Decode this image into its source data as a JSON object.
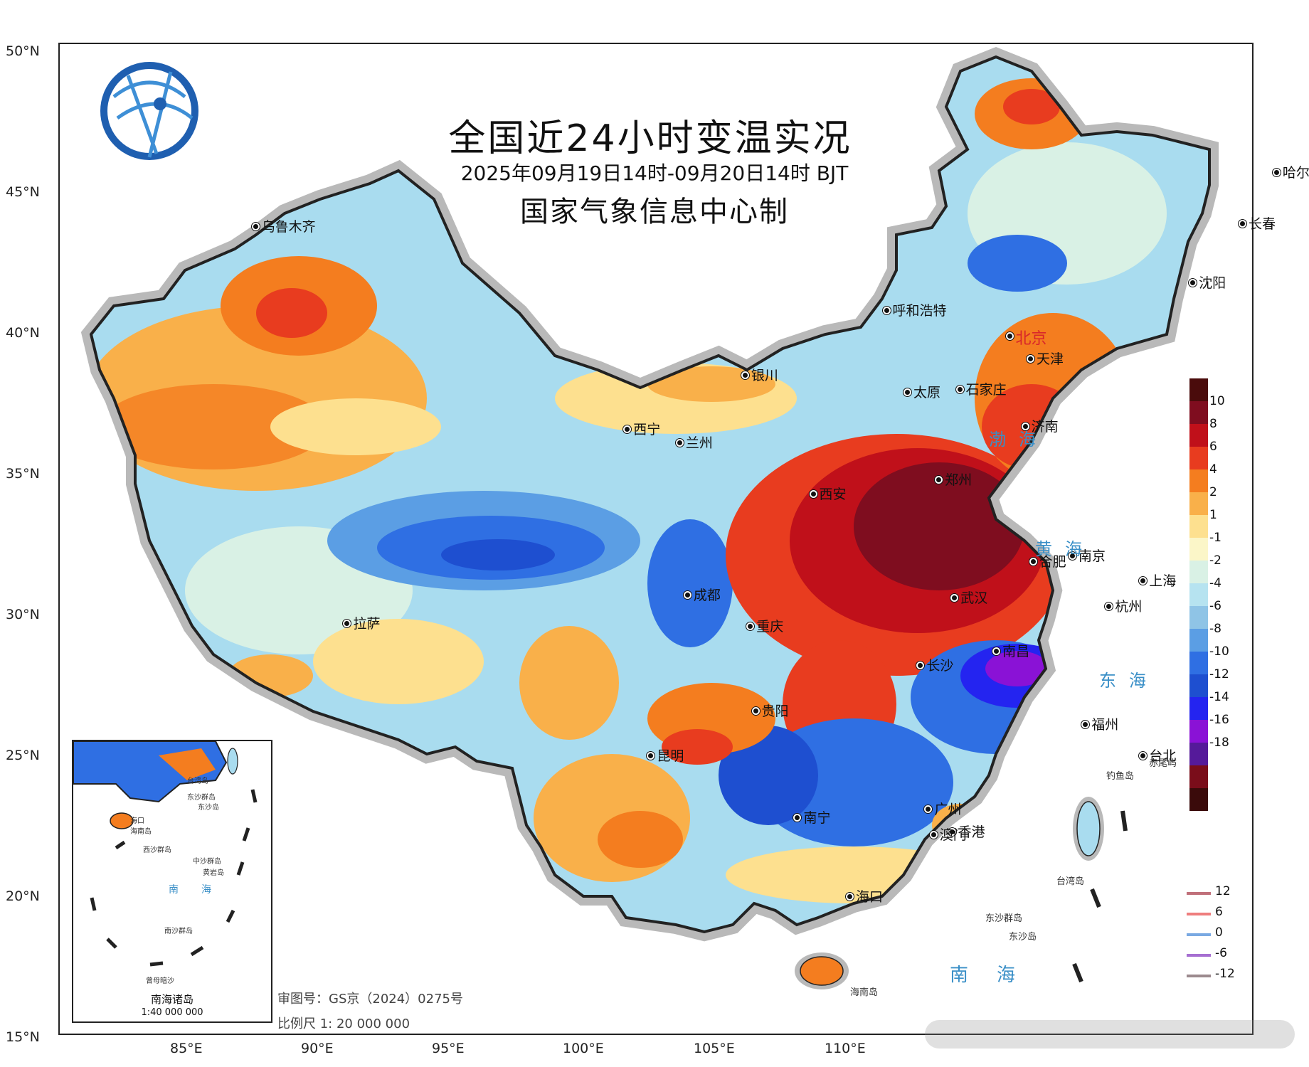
{
  "title": {
    "main": "全国近24小时变温实况",
    "time_range": "2025年09月19日14时-09月20日14时 BJT",
    "organization": "国家气象信息中心制"
  },
  "axes": {
    "latitude_labels": [
      "50°N",
      "45°N",
      "40°N",
      "35°N",
      "30°N",
      "25°N",
      "20°N",
      "15°N"
    ],
    "longitude_labels": [
      "85°E",
      "90°E",
      "95°E",
      "100°E",
      "105°E",
      "110°E"
    ]
  },
  "cities": [
    {
      "name": "乌鲁木齐",
      "lon": 87.6,
      "lat": 43.8
    },
    {
      "name": "哈尔滨",
      "lon": 126.6,
      "lat": 45.7
    },
    {
      "name": "长春",
      "lon": 125.3,
      "lat": 43.9
    },
    {
      "name": "沈阳",
      "lon": 123.4,
      "lat": 41.8
    },
    {
      "name": "呼和浩特",
      "lon": 111.7,
      "lat": 40.8
    },
    {
      "name": "北京",
      "lon": 116.4,
      "lat": 39.9
    },
    {
      "name": "天津",
      "lon": 117.2,
      "lat": 39.1
    },
    {
      "name": "石家庄",
      "lon": 114.5,
      "lat": 38.0
    },
    {
      "name": "银川",
      "lon": 106.3,
      "lat": 38.5
    },
    {
      "name": "太原",
      "lon": 112.5,
      "lat": 37.9
    },
    {
      "name": "济南",
      "lon": 117.0,
      "lat": 36.7
    },
    {
      "name": "西宁",
      "lon": 101.8,
      "lat": 36.6
    },
    {
      "name": "兰州",
      "lon": 103.8,
      "lat": 36.1
    },
    {
      "name": "郑州",
      "lon": 113.7,
      "lat": 34.8
    },
    {
      "name": "西安",
      "lon": 108.9,
      "lat": 34.3
    },
    {
      "name": "合肥",
      "lon": 117.3,
      "lat": 31.9
    },
    {
      "name": "南京",
      "lon": 118.8,
      "lat": 32.1
    },
    {
      "name": "上海",
      "lon": 121.5,
      "lat": 31.2
    },
    {
      "name": "拉萨",
      "lon": 91.1,
      "lat": 29.7
    },
    {
      "name": "成都",
      "lon": 104.1,
      "lat": 30.7
    },
    {
      "name": "武汉",
      "lon": 114.3,
      "lat": 30.6
    },
    {
      "name": "杭州",
      "lon": 120.2,
      "lat": 30.3
    },
    {
      "name": "重庆",
      "lon": 106.5,
      "lat": 29.6
    },
    {
      "name": "南昌",
      "lon": 115.9,
      "lat": 28.7
    },
    {
      "name": "长沙",
      "lon": 113.0,
      "lat": 28.2
    },
    {
      "name": "贵阳",
      "lon": 106.7,
      "lat": 26.6
    },
    {
      "name": "福州",
      "lon": 119.3,
      "lat": 26.1
    },
    {
      "name": "台北",
      "lon": 121.5,
      "lat": 25.0
    },
    {
      "name": "昆明",
      "lon": 102.7,
      "lat": 25.0
    },
    {
      "name": "广州",
      "lon": 113.3,
      "lat": 23.1
    },
    {
      "name": "南宁",
      "lon": 108.3,
      "lat": 22.8
    },
    {
      "name": "香港",
      "lon": 114.2,
      "lat": 22.3
    },
    {
      "name": "澳门",
      "lon": 113.5,
      "lat": 22.2
    },
    {
      "name": "海口",
      "lon": 110.3,
      "lat": 20.0
    }
  ],
  "sea_labels": {
    "bohai": "渤海",
    "huanghai": "黄海",
    "donghai": "东海",
    "nanhai": "南海"
  },
  "island_labels": {
    "diaoyu": "钓鱼岛",
    "chiwei": "赤尾屿",
    "taiwan": "台湾岛",
    "dongsha_qundao": "东沙群岛",
    "dongsha_dao": "东沙岛",
    "hainan": "海南岛"
  },
  "legend": {
    "colors": [
      "#4a0b0b",
      "#7f0d1f",
      "#c0101a",
      "#e83c1f",
      "#f47d1f",
      "#f9b04a",
      "#fde08f",
      "#fbf6c8",
      "#d9f1e5",
      "#b6e3f0",
      "#8fc4e6",
      "#5b9ee4",
      "#2f6fe3",
      "#1e4fd0",
      "#2424f0",
      "#8a12d6",
      "#551a9a",
      "#7a0d1a",
      "#3a0a0a"
    ],
    "ticks": [
      "10",
      "8",
      "6",
      "4",
      "2",
      "1",
      "-1",
      "-2",
      "-4",
      "-6",
      "-8",
      "-10",
      "-12",
      "-14",
      "-16",
      "-18"
    ]
  },
  "contour_legend": [
    {
      "label": "12",
      "color": "#c0707a"
    },
    {
      "label": "6",
      "color": "#ee7e7e"
    },
    {
      "label": "0",
      "color": "#7aa9e2"
    },
    {
      "label": "-6",
      "color": "#a66fd1"
    },
    {
      "label": "-12",
      "color": "#9c8a8e"
    }
  ],
  "inset": {
    "title": "南海诸岛",
    "scale": "1:40 000 000",
    "labels": [
      "台湾岛",
      "东沙群岛",
      "东沙岛",
      "海口",
      "海南岛",
      "西沙群岛",
      "中沙群岛",
      "黄岩岛",
      "南",
      "海",
      "南沙群岛",
      "曾母暗沙"
    ]
  },
  "footer": {
    "review_number": "审图号：GS京（2024）0275号",
    "scale": "比例尺 1: 20 000 000"
  }
}
